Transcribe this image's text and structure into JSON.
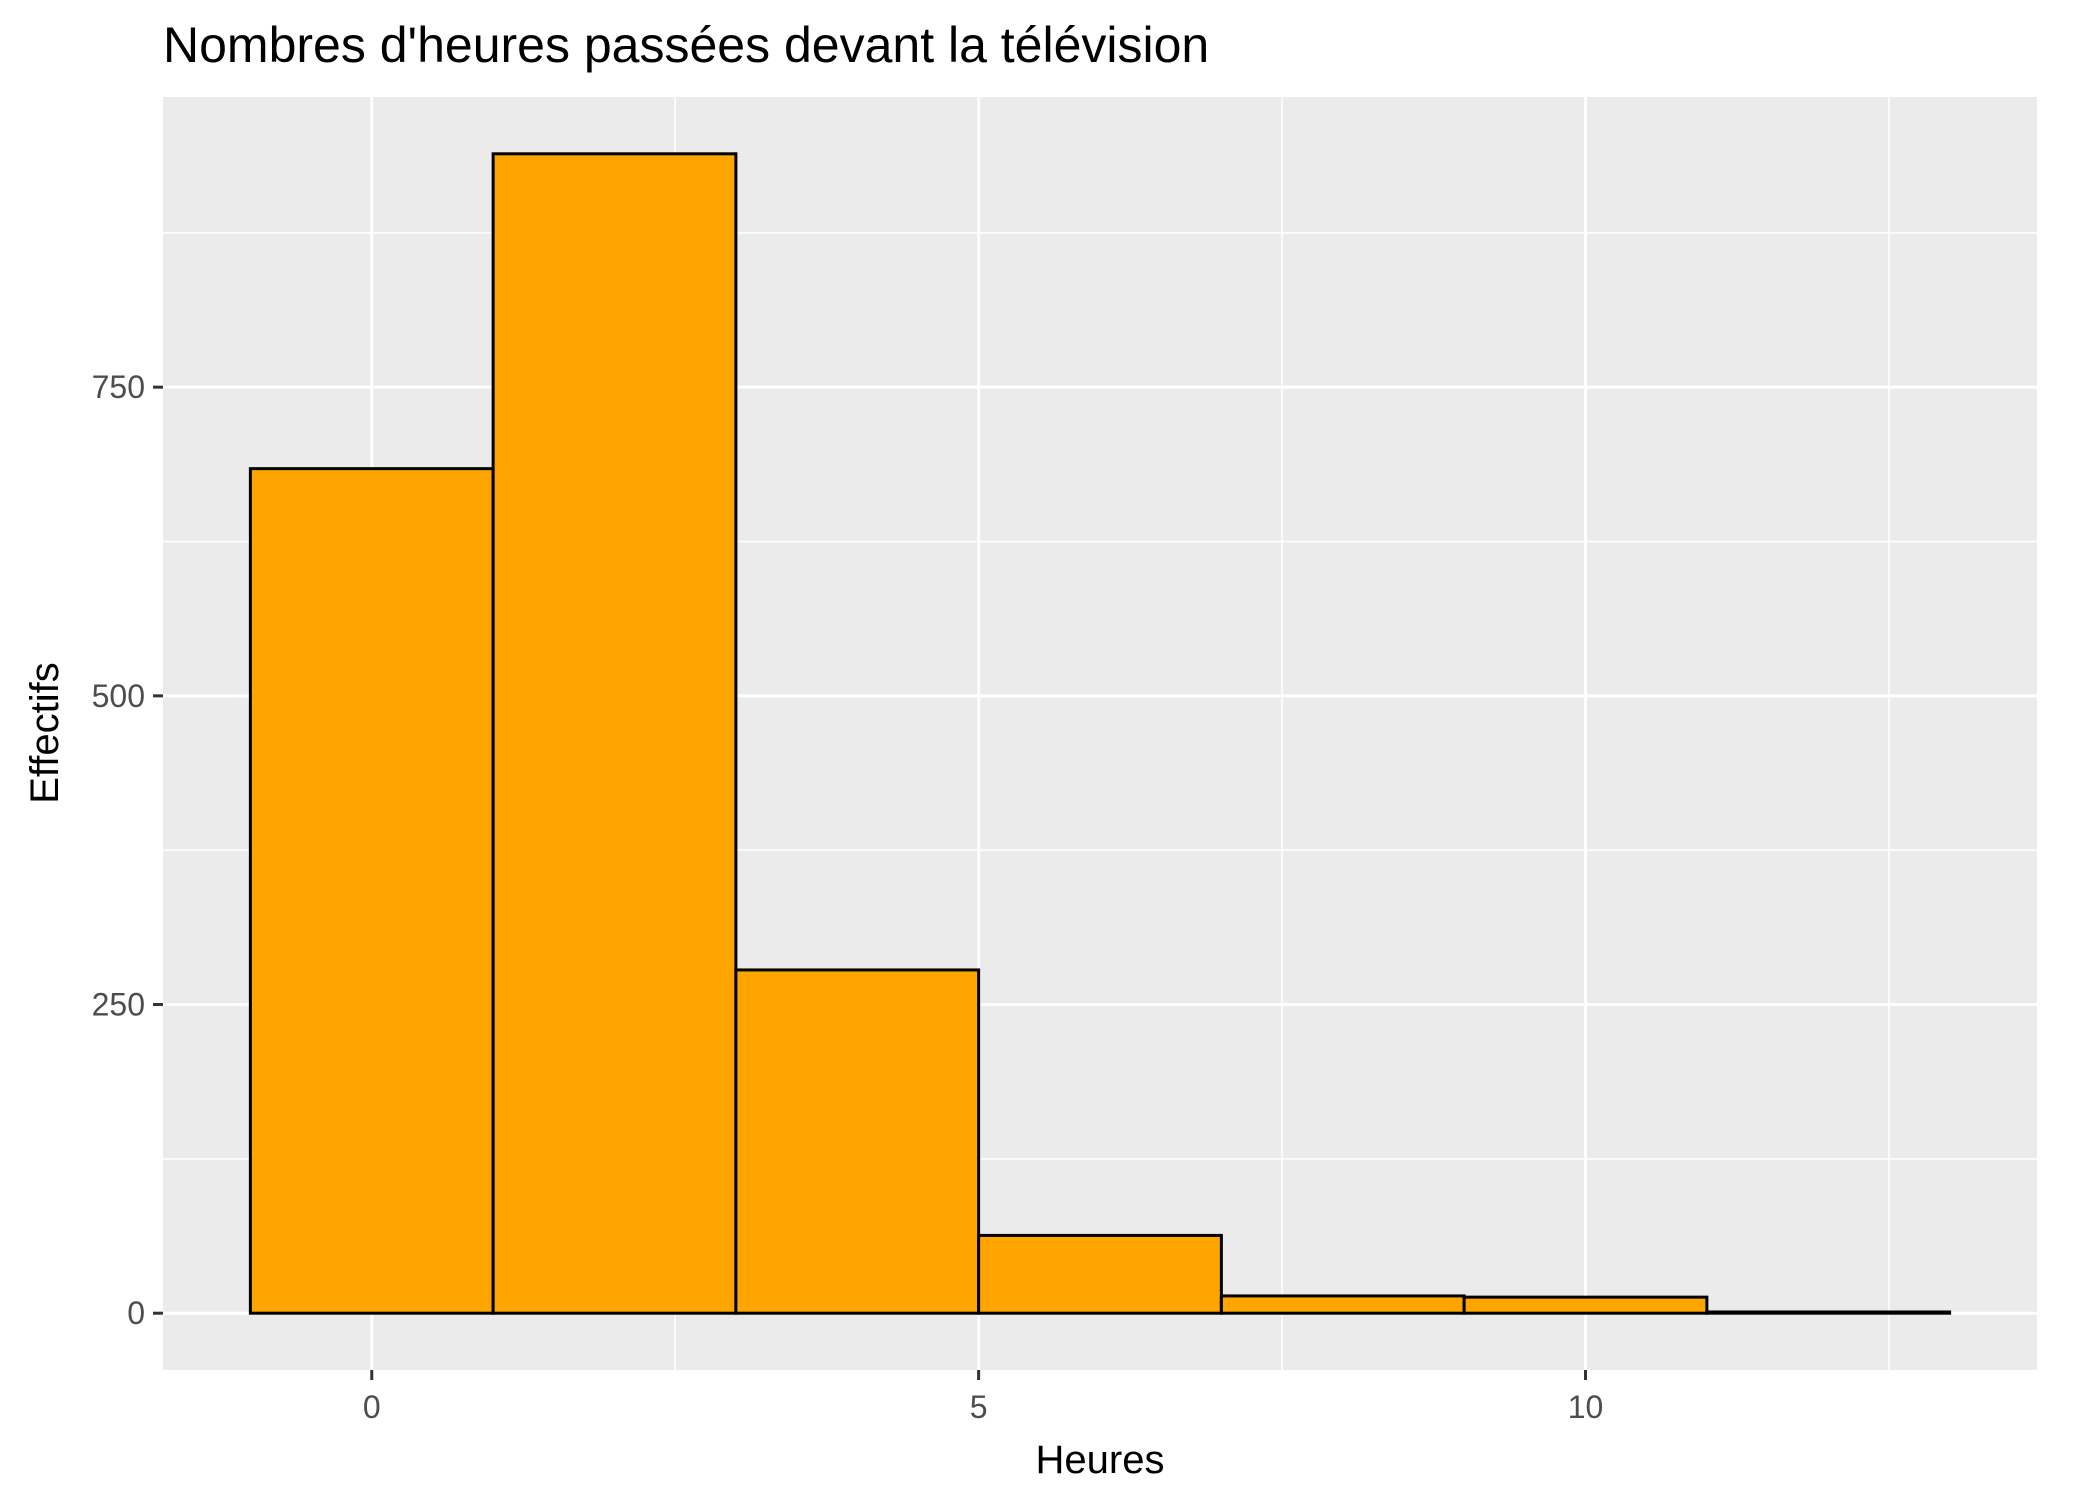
{
  "chart_data": {
    "type": "bar",
    "subtype": "histogram",
    "title": "Nombres d'heures passées devant la télévision",
    "xlabel": "Heures",
    "ylabel": "Effectifs",
    "xlim": [
      -1.72,
      13.72
    ],
    "ylim": [
      -46,
      985
    ],
    "x_ticks": [
      0,
      5,
      10
    ],
    "y_ticks": [
      0,
      250,
      500,
      750
    ],
    "bins": [
      {
        "x_start": -1,
        "x_end": 1,
        "count": 684
      },
      {
        "x_start": 1,
        "x_end": 3,
        "count": 939
      },
      {
        "x_start": 3,
        "x_end": 5,
        "count": 278
      },
      {
        "x_start": 5,
        "x_end": 7,
        "count": 63
      },
      {
        "x_start": 7,
        "x_end": 9,
        "count": 14
      },
      {
        "x_start": 9,
        "x_end": 11,
        "count": 13
      },
      {
        "x_start": 11,
        "x_end": 13,
        "count": 1
      }
    ],
    "grid": true,
    "legend": "none",
    "colors": {
      "bar_fill": "#FFA500",
      "bar_stroke": "#000000",
      "panel_background": "#EBEBEB",
      "grid": "#FFFFFF",
      "tick_label": "#4D4D4D"
    }
  }
}
